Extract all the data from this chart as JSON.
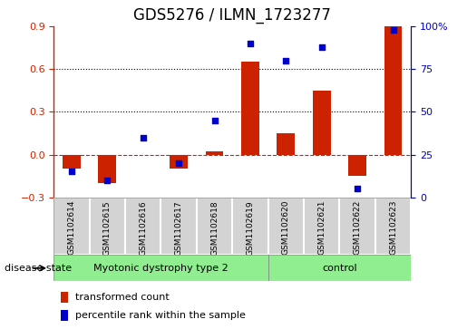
{
  "title": "GDS5276 / ILMN_1723277",
  "samples": [
    "GSM1102614",
    "GSM1102615",
    "GSM1102616",
    "GSM1102617",
    "GSM1102618",
    "GSM1102619",
    "GSM1102620",
    "GSM1102621",
    "GSM1102622",
    "GSM1102623"
  ],
  "red_values": [
    -0.1,
    -0.2,
    0.0,
    -0.1,
    0.02,
    0.65,
    0.15,
    0.45,
    -0.15,
    0.9
  ],
  "blue_values": [
    15,
    10,
    35,
    20,
    45,
    90,
    80,
    88,
    5,
    98
  ],
  "groups": [
    {
      "label": "Myotonic dystrophy type 2",
      "start": 0,
      "end": 5
    },
    {
      "label": "control",
      "start": 6,
      "end": 9
    }
  ],
  "ylim_left": [
    -0.3,
    0.9
  ],
  "ylim_right": [
    0,
    100
  ],
  "yticks_left": [
    -0.3,
    0.0,
    0.3,
    0.6,
    0.9
  ],
  "yticks_right": [
    0,
    25,
    50,
    75,
    100
  ],
  "ytick_labels_right": [
    "0",
    "25",
    "50",
    "75",
    "100%"
  ],
  "red_color": "#CC2200",
  "blue_color": "#0000CC",
  "bar_width": 0.5,
  "hline_y": 0.0,
  "dotted_lines": [
    0.3,
    0.6
  ],
  "title_fontsize": 12,
  "tick_fontsize": 8,
  "disease_state_label": "disease state",
  "legend_items": [
    {
      "color": "#CC2200",
      "label": "transformed count"
    },
    {
      "color": "#0000CC",
      "label": "percentile rank within the sample"
    }
  ],
  "background_color": "#FFFFFF",
  "group_color": "#90EE90",
  "box_color": "#D3D3D3"
}
